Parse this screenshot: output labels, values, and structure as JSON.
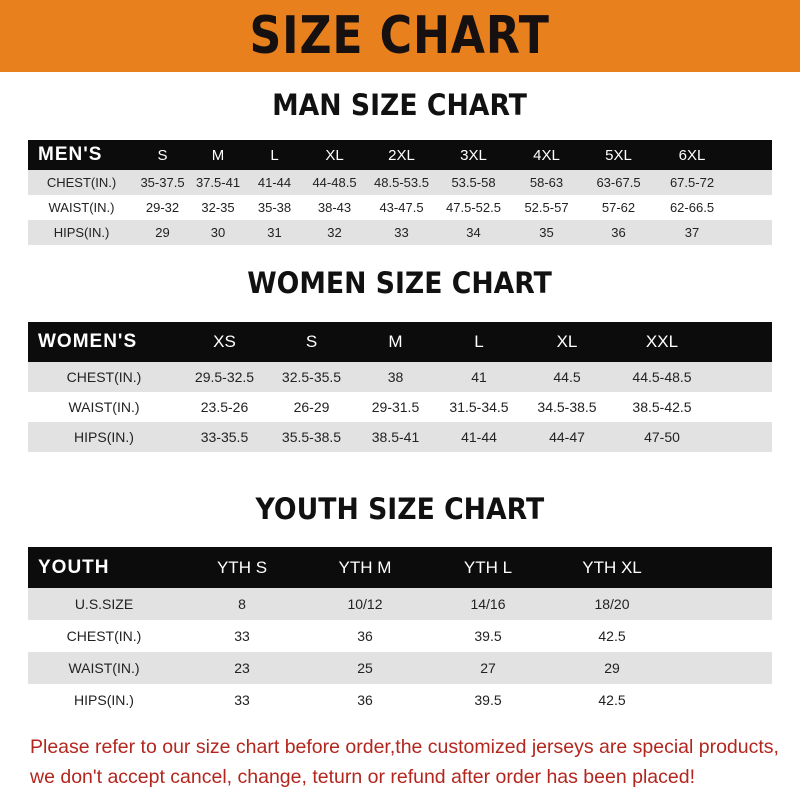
{
  "title": "SIZE CHART",
  "colors": {
    "banner": "#E8801E",
    "header_row": "#0c0c0c",
    "stripe": "#e2e2e2",
    "note": "#B3261E"
  },
  "men": {
    "heading": "MAN SIZE CHART",
    "label": "MEN'S",
    "sizes": [
      "S",
      "M",
      "L",
      "XL",
      "2XL",
      "3XL",
      "4XL",
      "5XL",
      "6XL"
    ],
    "rows": [
      {
        "label": "CHEST(IN.)",
        "values": [
          "35-37.5",
          "37.5-41",
          "41-44",
          "44-48.5",
          "48.5-53.5",
          "53.5-58",
          "58-63",
          "63-67.5",
          "67.5-72"
        ]
      },
      {
        "label": "WAIST(IN.)",
        "values": [
          "29-32",
          "32-35",
          "35-38",
          "38-43",
          "43-47.5",
          "47.5-52.5",
          "52.5-57",
          "57-62",
          "62-66.5"
        ]
      },
      {
        "label": "HIPS(IN.)",
        "values": [
          "29",
          "30",
          "31",
          "32",
          "33",
          "34",
          "35",
          "36",
          "37"
        ]
      }
    ]
  },
  "women": {
    "heading": "WOMEN SIZE CHART",
    "label": "WOMEN'S",
    "sizes": [
      "XS",
      "S",
      "M",
      "L",
      "XL",
      "XXL"
    ],
    "rows": [
      {
        "label": "CHEST(IN.)",
        "values": [
          "29.5-32.5",
          "32.5-35.5",
          "38",
          "41",
          "44.5",
          "44.5-48.5"
        ]
      },
      {
        "label": "WAIST(IN.)",
        "values": [
          "23.5-26",
          "26-29",
          "29-31.5",
          "31.5-34.5",
          "34.5-38.5",
          "38.5-42.5"
        ]
      },
      {
        "label": "HIPS(IN.)",
        "values": [
          "33-35.5",
          "35.5-38.5",
          "38.5-41",
          "41-44",
          "44-47",
          "47-50"
        ]
      }
    ]
  },
  "youth": {
    "heading": "YOUTH SIZE CHART",
    "label": "YOUTH",
    "sizes": [
      "YTH S",
      "YTH M",
      "YTH L",
      "YTH XL"
    ],
    "rows": [
      {
        "label": "U.S.SIZE",
        "values": [
          "8",
          "10/12",
          "14/16",
          "18/20"
        ]
      },
      {
        "label": "CHEST(IN.)",
        "values": [
          "33",
          "36",
          "39.5",
          "42.5"
        ]
      },
      {
        "label": "WAIST(IN.)",
        "values": [
          "23",
          "25",
          "27",
          "29"
        ]
      },
      {
        "label": "HIPS(IN.)",
        "values": [
          "33",
          "36",
          "39.5",
          "42.5"
        ]
      }
    ]
  },
  "note": {
    "line1": "Please refer to our size chart before order,the customized jerseys are special products,",
    "line2": "we don't accept cancel, change, teturn or refund after order has been placed!"
  }
}
